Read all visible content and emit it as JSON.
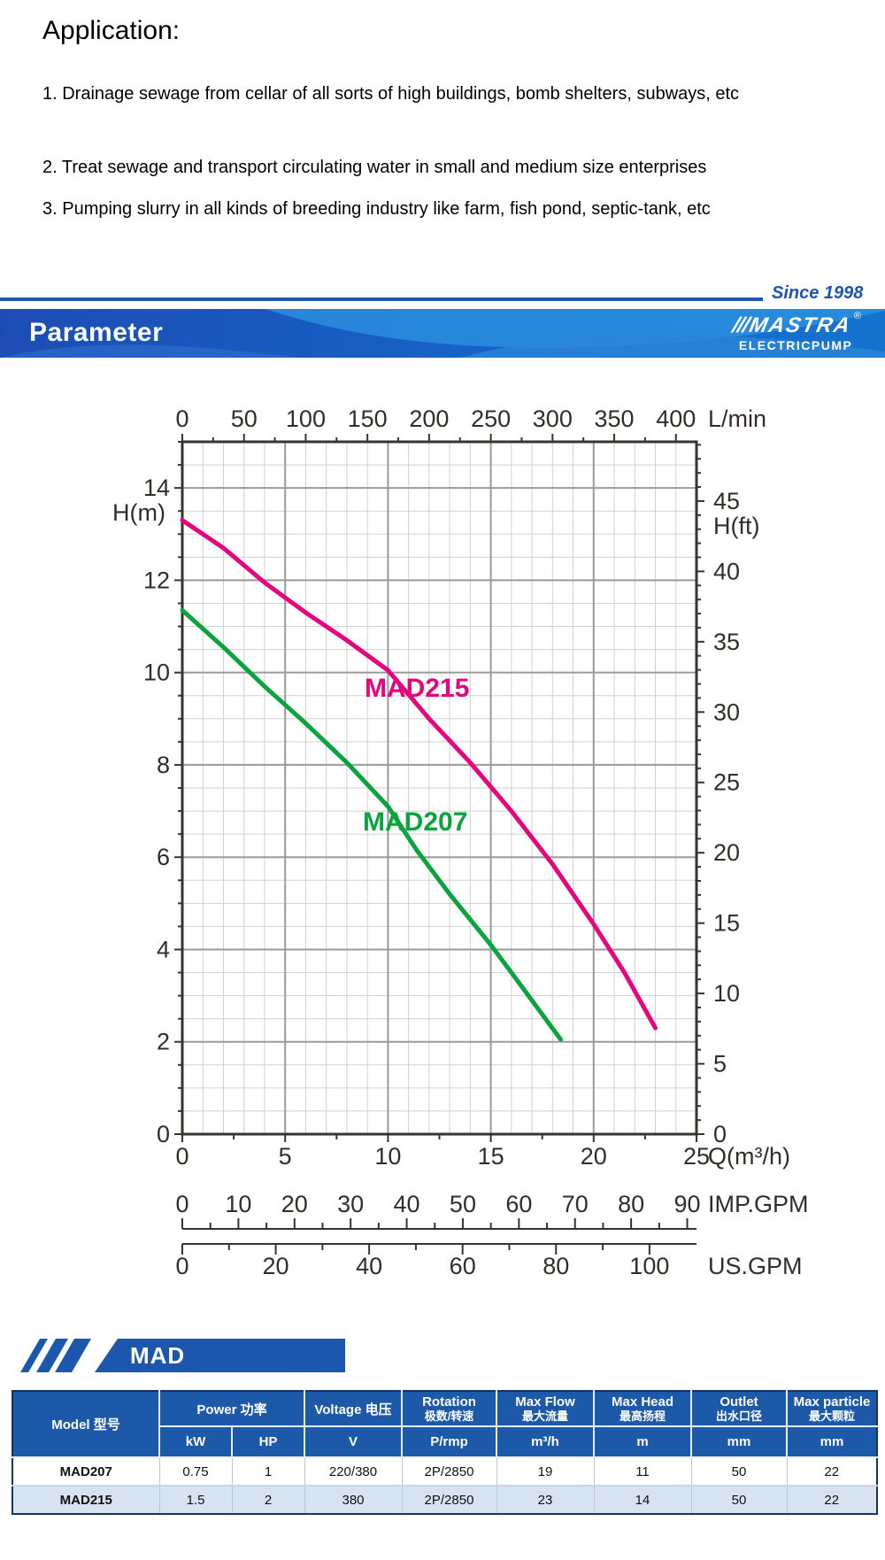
{
  "application": {
    "title": "Application:",
    "items": [
      "1. Drainage sewage from cellar of all sorts of high buildings, bomb shelters, subways, etc",
      "2. Treat sewage and transport circulating water in small and medium size enterprises",
      "3. Pumping slurry in all kinds of breeding industry like farm, fish pond, septic-tank, etc"
    ]
  },
  "divider": {
    "since_label": "Since 1998"
  },
  "banner": {
    "title": "Parameter",
    "logo_slashes": "///",
    "logo_brand": "MASTRA",
    "logo_registered": "®",
    "logo_subtitle": "ELECTRICPUMP"
  },
  "chart_data": {
    "type": "line",
    "title": "",
    "x_axis_bottom": {
      "label": "Q(m³/h)",
      "min": 0,
      "max": 25,
      "label_step": 5,
      "minor_step": 2.5
    },
    "x_axis_top": {
      "label": "L/min",
      "min": 0,
      "max": 400,
      "label_step": 50,
      "minor_step": 25
    },
    "x_axis_imp": {
      "label": "IMP.GPM",
      "min": 0,
      "max": 90,
      "label_step": 10,
      "minor_step": 5
    },
    "x_axis_us": {
      "label": "US.GPM",
      "min": 0,
      "max": 100,
      "label_step": 20,
      "minor_step": 10
    },
    "y_axis_left": {
      "label": "H(m)",
      "min": 0,
      "max": 15,
      "label_step": 2,
      "label_max": 14,
      "minor_step": 0.5
    },
    "y_axis_right": {
      "label": "H(ft)",
      "min": 0,
      "max": 49,
      "label_step": 5,
      "label_max": 45,
      "minor_step": 1
    },
    "grid": {
      "minor_color": "#d0d0d0",
      "major_color": "#9a9a9a",
      "on": true
    },
    "legend_position": "on-curve",
    "series": [
      {
        "name": "MAD215",
        "color": "#e5057f",
        "points": [
          [
            0,
            13.3
          ],
          [
            2,
            12.7
          ],
          [
            4,
            11.95
          ],
          [
            6,
            11.3
          ],
          [
            8,
            10.7
          ],
          [
            10,
            10.05
          ],
          [
            12,
            9.0
          ],
          [
            14,
            8.05
          ],
          [
            16,
            7.0
          ],
          [
            18,
            5.85
          ],
          [
            20,
            4.55
          ],
          [
            21.5,
            3.5
          ],
          [
            23,
            2.3
          ]
        ]
      },
      {
        "name": "MAD207",
        "color": "#0aa43e",
        "points": [
          [
            0,
            11.35
          ],
          [
            2,
            10.55
          ],
          [
            4,
            9.7
          ],
          [
            6,
            8.9
          ],
          [
            8,
            8.05
          ],
          [
            10,
            7.1
          ],
          [
            11.4,
            6.15
          ],
          [
            13,
            5.2
          ],
          [
            15,
            4.1
          ],
          [
            16.5,
            3.2
          ],
          [
            18.4,
            2.05
          ]
        ]
      }
    ]
  },
  "section": {
    "label": "MAD"
  },
  "spec_table": {
    "header": {
      "model": "Model 型号",
      "power": "Power 功率",
      "voltage": "Voltage 电压",
      "rotation_l1": "Rotation",
      "rotation_l2": "极数/转速",
      "max_flow_l1": "Max Flow",
      "max_flow_l2": "最大流量",
      "max_head_l1": "Max Head",
      "max_head_l2": "最高扬程",
      "outlet_l1": "Outlet",
      "outlet_l2": "出水口径",
      "max_particle_l1": "Max particle",
      "max_particle_l2": "最大颗粒"
    },
    "units": {
      "kw": "kW",
      "hp": "HP",
      "v": "V",
      "rot": "P/rmp",
      "flow": "m³/h",
      "head": "m",
      "outlet": "mm",
      "particle": "mm"
    },
    "rows": [
      {
        "model": "MAD207",
        "kw": "0.75",
        "hp": "1",
        "v": "220/380",
        "rot": "2P/2850",
        "flow": "19",
        "head": "11",
        "outlet": "50",
        "particle": "22"
      },
      {
        "model": "MAD215",
        "kw": "1.5",
        "hp": "2",
        "v": "380",
        "rot": "2P/2850",
        "flow": "23",
        "head": "14",
        "outlet": "50",
        "particle": "22"
      }
    ]
  }
}
